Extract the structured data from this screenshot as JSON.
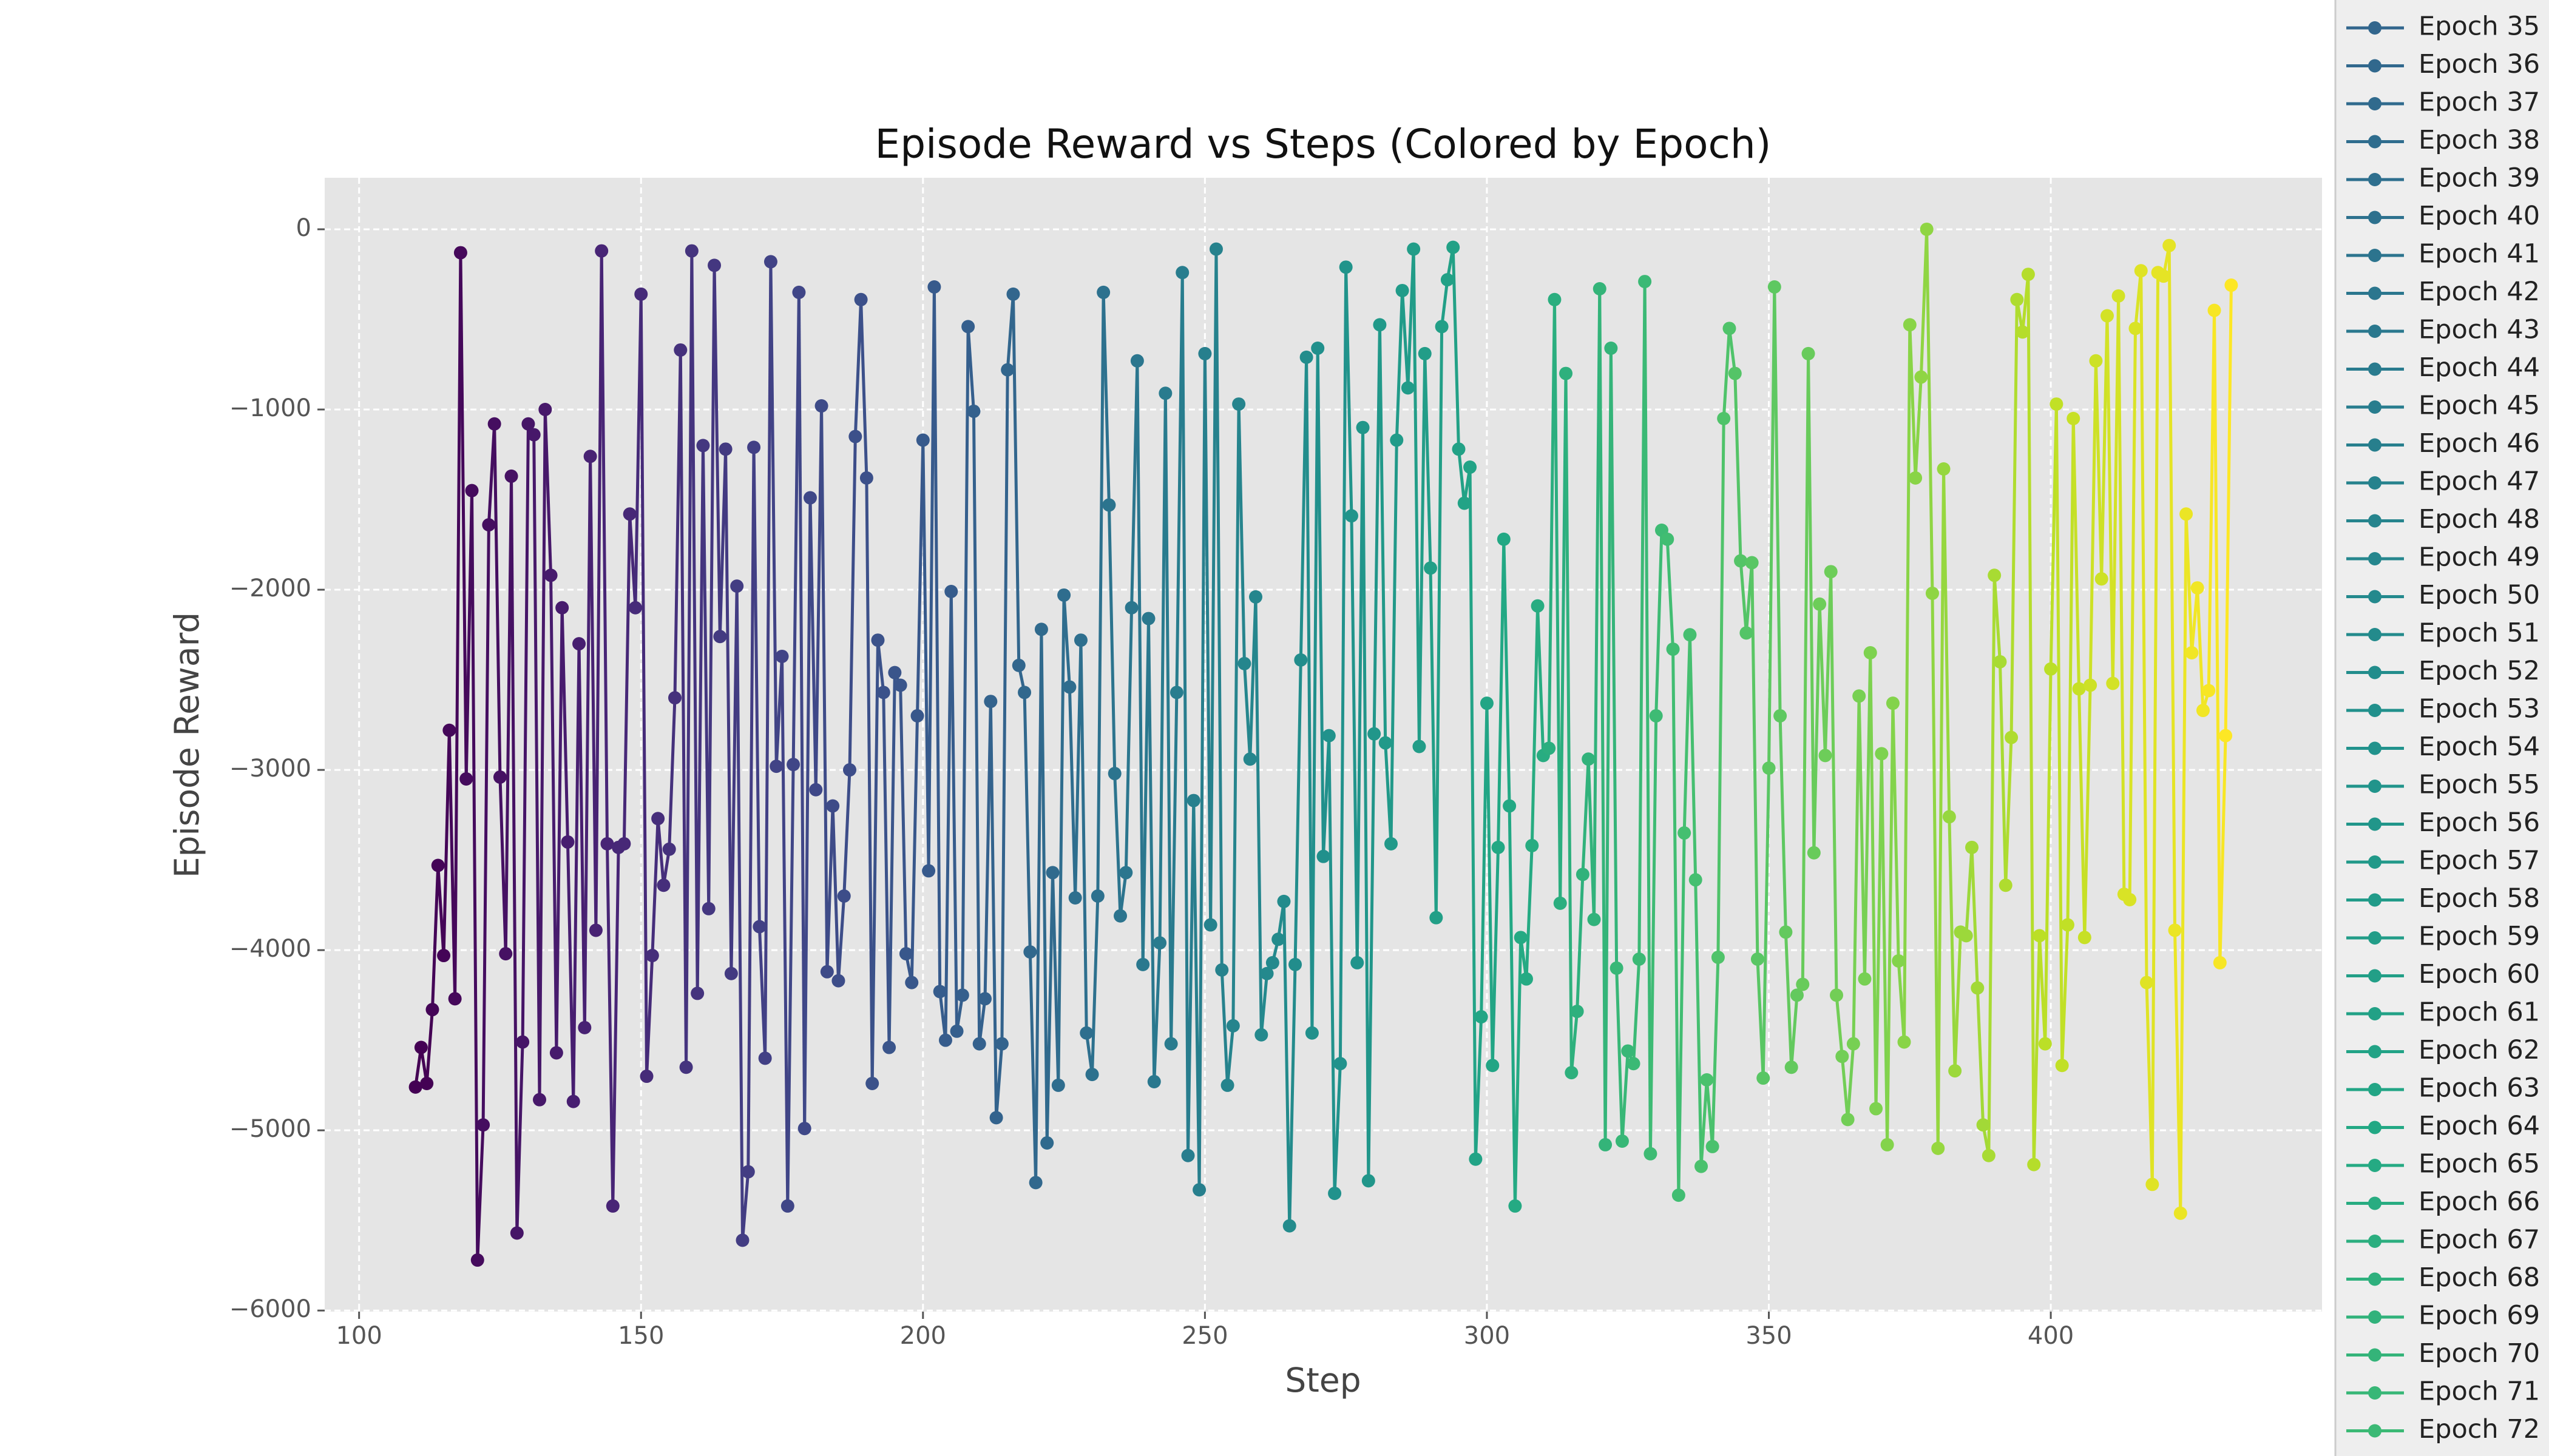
{
  "chart_data": {
    "type": "line",
    "title": "Episode Reward vs Steps (Colored by Epoch)",
    "xlabel": "Step",
    "ylabel": "Episode Reward",
    "xlim": [
      93.9,
      448.1
    ],
    "ylim": [
      -6006,
      286
    ],
    "xticks": [
      100,
      150,
      200,
      250,
      300,
      350,
      400
    ],
    "yticks": [
      {
        "value": -6000,
        "label": "−6000"
      },
      {
        "value": -5000,
        "label": "−5000"
      },
      {
        "value": -4000,
        "label": "−4000"
      },
      {
        "value": -3000,
        "label": "−3000"
      },
      {
        "value": -2000,
        "label": "−2000"
      },
      {
        "value": -1000,
        "label": "−1000"
      },
      0
    ],
    "grid": true,
    "colormap": "viridis",
    "legend": "outside right",
    "markers": true,
    "series": [
      {
        "x": [
          110,
          111,
          112
        ],
        "values": [
          -4760,
          -4540,
          -4740
        ]
      },
      {
        "x": [
          113,
          114,
          115
        ],
        "values": [
          -4330,
          -3530,
          -4030
        ]
      },
      {
        "x": [
          116,
          117,
          118
        ],
        "values": [
          -2780,
          -4270,
          -130
        ]
      },
      {
        "x": [
          119,
          120,
          121
        ],
        "values": [
          -3050,
          -1450,
          -5720
        ]
      },
      {
        "x": [
          122,
          123,
          124
        ],
        "values": [
          -4970,
          -1640,
          -1080
        ]
      },
      {
        "x": [
          125,
          126,
          127
        ],
        "values": [
          -3040,
          -4020,
          -1370
        ]
      },
      {
        "x": [
          128,
          129,
          130
        ],
        "values": [
          -5570,
          -4510,
          -1080
        ]
      },
      {
        "x": [
          131,
          132,
          133
        ],
        "values": [
          -1140,
          -4830,
          -1000
        ]
      },
      {
        "x": [
          134,
          135,
          136
        ],
        "values": [
          -1920,
          -4570,
          -2100
        ]
      },
      {
        "x": [
          137,
          138,
          139
        ],
        "values": [
          -3400,
          -4840,
          -2300
        ]
      },
      {
        "x": [
          140,
          141,
          142
        ],
        "values": [
          -4430,
          -1260,
          -3890
        ]
      },
      {
        "x": [
          143,
          144,
          145
        ],
        "values": [
          -120,
          -3410,
          -5420
        ]
      },
      {
        "x": [
          146,
          147,
          148
        ],
        "values": [
          -3430,
          -3410,
          -1580
        ]
      },
      {
        "x": [
          149,
          150,
          151
        ],
        "values": [
          -2100,
          -360,
          -4700
        ]
      },
      {
        "x": [
          152,
          153,
          154
        ],
        "values": [
          -4030,
          -3270,
          -3640
        ]
      },
      {
        "x": [
          155,
          156,
          157
        ],
        "values": [
          -3440,
          -2600,
          -670
        ]
      },
      {
        "x": [
          158,
          159,
          160
        ],
        "values": [
          -4650,
          -120,
          -4240
        ]
      },
      {
        "x": [
          161,
          162,
          163
        ],
        "values": [
          -1200,
          -3770,
          -200
        ]
      },
      {
        "x": [
          164,
          165,
          166
        ],
        "values": [
          -2260,
          -1220,
          -4130
        ]
      },
      {
        "x": [
          167,
          168,
          169
        ],
        "values": [
          -1980,
          -5610,
          -5230
        ]
      },
      {
        "x": [
          170,
          171,
          172
        ],
        "values": [
          -1210,
          -3870,
          -4600
        ]
      },
      {
        "x": [
          173,
          174,
          175
        ],
        "values": [
          -180,
          -2980,
          -2370
        ]
      },
      {
        "x": [
          176,
          177,
          178
        ],
        "values": [
          -5420,
          -2970,
          -350
        ]
      },
      {
        "x": [
          179,
          180,
          181
        ],
        "values": [
          -4990,
          -1490,
          -3110
        ]
      },
      {
        "x": [
          182,
          183,
          184
        ],
        "values": [
          -980,
          -4120,
          -3200
        ]
      },
      {
        "x": [
          185,
          186,
          187
        ],
        "values": [
          -4170,
          -3700,
          -3000
        ]
      },
      {
        "x": [
          188,
          189,
          190
        ],
        "values": [
          -1150,
          -390,
          -1380
        ]
      },
      {
        "x": [
          191,
          192,
          193
        ],
        "values": [
          -4740,
          -2280,
          -2570
        ]
      },
      {
        "x": [
          194,
          195,
          196
        ],
        "values": [
          -4540,
          -2460,
          -2530
        ]
      },
      {
        "x": [
          197,
          198,
          199
        ],
        "values": [
          -4020,
          -4180,
          -2700
        ]
      },
      {
        "x": [
          200,
          201,
          202
        ],
        "values": [
          -1170,
          -3560,
          -320
        ]
      },
      {
        "x": [
          203,
          204,
          205
        ],
        "values": [
          -4230,
          -4500,
          -2010
        ]
      },
      {
        "x": [
          206,
          207,
          208
        ],
        "values": [
          -4450,
          -4250,
          -540
        ]
      },
      {
        "x": [
          209,
          210,
          211
        ],
        "values": [
          -1010,
          -4520,
          -4270
        ]
      },
      {
        "x": [
          212,
          213,
          214
        ],
        "values": [
          -2620,
          -4930,
          -4520
        ]
      },
      {
        "name": "Epoch 35",
        "x": [
          215,
          216,
          217
        ],
        "values": [
          -780,
          -360,
          -2420
        ]
      },
      {
        "name": "Epoch 36",
        "x": [
          218,
          219,
          220
        ],
        "values": [
          -2570,
          -4010,
          -5290
        ]
      },
      {
        "name": "Epoch 37",
        "x": [
          221,
          222,
          223
        ],
        "values": [
          -2220,
          -5070,
          -3570
        ]
      },
      {
        "name": "Epoch 38",
        "x": [
          224,
          225,
          226
        ],
        "values": [
          -4750,
          -2030,
          -2540
        ]
      },
      {
        "name": "Epoch 39",
        "x": [
          227,
          228,
          229
        ],
        "values": [
          -3710,
          -2280,
          -4460
        ]
      },
      {
        "name": "Epoch 40",
        "x": [
          230,
          231,
          232
        ],
        "values": [
          -4690,
          -3700,
          -350
        ]
      },
      {
        "name": "Epoch 41",
        "x": [
          233,
          234,
          235
        ],
        "values": [
          -1530,
          -3020,
          -3810
        ]
      },
      {
        "name": "Epoch 42",
        "x": [
          236,
          237,
          238
        ],
        "values": [
          -3570,
          -2100,
          -730
        ]
      },
      {
        "name": "Epoch 43",
        "x": [
          239,
          240,
          241
        ],
        "values": [
          -4080,
          -2160,
          -4730
        ]
      },
      {
        "name": "Epoch 44",
        "x": [
          242,
          243,
          244
        ],
        "values": [
          -3960,
          -910,
          -4520
        ]
      },
      {
        "name": "Epoch 45",
        "x": [
          245,
          246,
          247
        ],
        "values": [
          -2570,
          -240,
          -5140
        ]
      },
      {
        "name": "Epoch 46",
        "x": [
          248,
          249,
          250
        ],
        "values": [
          -3170,
          -5330,
          -690
        ]
      },
      {
        "name": "Epoch 47",
        "x": [
          251,
          252,
          253
        ],
        "values": [
          -3860,
          -110,
          -4110
        ]
      },
      {
        "name": "Epoch 48",
        "x": [
          254,
          255,
          256
        ],
        "values": [
          -4750,
          -4420,
          -970
        ]
      },
      {
        "name": "Epoch 49",
        "x": [
          257,
          258,
          259
        ],
        "values": [
          -2410,
          -2940,
          -2040
        ]
      },
      {
        "name": "Epoch 50",
        "x": [
          260,
          261,
          262
        ],
        "values": [
          -4470,
          -4130,
          -4070
        ]
      },
      {
        "name": "Epoch 51",
        "x": [
          263,
          264,
          265
        ],
        "values": [
          -3940,
          -3730,
          -5530
        ]
      },
      {
        "name": "Epoch 52",
        "x": [
          266,
          267,
          268
        ],
        "values": [
          -4080,
          -2390,
          -710
        ]
      },
      {
        "name": "Epoch 53",
        "x": [
          269,
          270,
          271
        ],
        "values": [
          -4460,
          -660,
          -3480
        ]
      },
      {
        "name": "Epoch 54",
        "x": [
          272,
          273,
          274
        ],
        "values": [
          -2810,
          -5350,
          -4630
        ]
      },
      {
        "name": "Epoch 55",
        "x": [
          275,
          276,
          277
        ],
        "values": [
          -210,
          -1590,
          -4070
        ]
      },
      {
        "name": "Epoch 56",
        "x": [
          278,
          279,
          280
        ],
        "values": [
          -1100,
          -5280,
          -2800
        ]
      },
      {
        "name": "Epoch 57",
        "x": [
          281,
          282,
          283
        ],
        "values": [
          -530,
          -2850,
          -3410
        ]
      },
      {
        "name": "Epoch 58",
        "x": [
          284,
          285,
          286
        ],
        "values": [
          -1170,
          -340,
          -880
        ]
      },
      {
        "name": "Epoch 59",
        "x": [
          287,
          288,
          289
        ],
        "values": [
          -110,
          -2870,
          -690
        ]
      },
      {
        "name": "Epoch 60",
        "x": [
          290,
          291,
          292
        ],
        "values": [
          -1880,
          -3820,
          -540
        ]
      },
      {
        "name": "Epoch 61",
        "x": [
          293,
          294,
          295
        ],
        "values": [
          -280,
          -100,
          -1220
        ]
      },
      {
        "name": "Epoch 62",
        "x": [
          296,
          297,
          298
        ],
        "values": [
          -1520,
          -1320,
          -5160
        ]
      },
      {
        "name": "Epoch 63",
        "x": [
          299,
          300,
          301
        ],
        "values": [
          -4370,
          -2630,
          -4640
        ]
      },
      {
        "name": "Epoch 64",
        "x": [
          302,
          303,
          304
        ],
        "values": [
          -3430,
          -1720,
          -3200
        ]
      },
      {
        "name": "Epoch 65",
        "x": [
          305,
          306,
          307
        ],
        "values": [
          -5420,
          -3930,
          -4160
        ]
      },
      {
        "name": "Epoch 66",
        "x": [
          308,
          309,
          310
        ],
        "values": [
          -3420,
          -2090,
          -2920
        ]
      },
      {
        "name": "Epoch 67",
        "x": [
          311,
          312,
          313
        ],
        "values": [
          -2880,
          -390,
          -3740
        ]
      },
      {
        "name": "Epoch 68",
        "x": [
          314,
          315,
          316
        ],
        "values": [
          -800,
          -4680,
          -4340
        ]
      },
      {
        "name": "Epoch 69",
        "x": [
          317,
          318,
          319
        ],
        "values": [
          -3580,
          -2940,
          -3830
        ]
      },
      {
        "name": "Epoch 70",
        "x": [
          320,
          321,
          322
        ],
        "values": [
          -330,
          -5080,
          -660
        ]
      },
      {
        "name": "Epoch 71",
        "x": [
          323,
          324,
          325
        ],
        "values": [
          -4100,
          -5060,
          -4560
        ]
      },
      {
        "name": "Epoch 72",
        "x": [
          326,
          327,
          328
        ],
        "values": [
          -4630,
          -4050,
          -290
        ]
      },
      {
        "x": [
          329,
          330,
          331
        ],
        "values": [
          -5130,
          -2700,
          -1670
        ]
      },
      {
        "x": [
          332,
          333,
          334
        ],
        "values": [
          -1720,
          -2330,
          -5360
        ]
      },
      {
        "x": [
          335,
          336,
          337
        ],
        "values": [
          -3350,
          -2250,
          -3610
        ]
      },
      {
        "x": [
          338,
          339,
          340
        ],
        "values": [
          -5200,
          -4720,
          -5090
        ]
      },
      {
        "x": [
          341,
          342,
          343
        ],
        "values": [
          -4040,
          -1050,
          -550
        ]
      },
      {
        "x": [
          344,
          345,
          346
        ],
        "values": [
          -800,
          -1840,
          -2240
        ]
      },
      {
        "x": [
          347,
          348,
          349
        ],
        "values": [
          -1850,
          -4050,
          -4710
        ]
      },
      {
        "x": [
          350,
          351,
          352
        ],
        "values": [
          -2990,
          -320,
          -2700
        ]
      },
      {
        "x": [
          353,
          354,
          355
        ],
        "values": [
          -3900,
          -4650,
          -4250
        ]
      },
      {
        "x": [
          356,
          357,
          358
        ],
        "values": [
          -4190,
          -690,
          -3460
        ]
      },
      {
        "x": [
          359,
          360,
          361
        ],
        "values": [
          -2080,
          -2920,
          -1900
        ]
      },
      {
        "x": [
          362,
          363,
          364
        ],
        "values": [
          -4250,
          -4590,
          -4940
        ]
      },
      {
        "x": [
          365,
          366,
          367
        ],
        "values": [
          -4520,
          -2590,
          -4160
        ]
      },
      {
        "x": [
          368,
          369,
          370
        ],
        "values": [
          -2350,
          -4880,
          -2910
        ]
      },
      {
        "x": [
          371,
          372,
          373
        ],
        "values": [
          -5080,
          -2630,
          -4060
        ]
      },
      {
        "x": [
          374,
          375,
          376
        ],
        "values": [
          -4510,
          -530,
          -1380
        ]
      },
      {
        "x": [
          377,
          378,
          379
        ],
        "values": [
          -820,
          0,
          -2020
        ]
      },
      {
        "x": [
          380,
          381,
          382
        ],
        "values": [
          -5100,
          -1330,
          -3260
        ]
      },
      {
        "x": [
          383,
          384,
          385
        ],
        "values": [
          -4670,
          -3900,
          -3920
        ]
      },
      {
        "x": [
          386,
          387,
          388
        ],
        "values": [
          -3430,
          -4210,
          -4970
        ]
      },
      {
        "x": [
          389,
          390,
          391
        ],
        "values": [
          -5140,
          -1920,
          -2400
        ]
      },
      {
        "x": [
          392,
          393,
          394
        ],
        "values": [
          -3640,
          -2820,
          -390
        ]
      },
      {
        "x": [
          395,
          396,
          397
        ],
        "values": [
          -570,
          -250,
          -5190
        ]
      },
      {
        "x": [
          398,
          399,
          400
        ],
        "values": [
          -3920,
          -4520,
          -2440
        ]
      },
      {
        "x": [
          401,
          402,
          403
        ],
        "values": [
          -970,
          -4640,
          -3860
        ]
      },
      {
        "x": [
          404,
          405,
          406
        ],
        "values": [
          -1050,
          -2550,
          -3930
        ]
      },
      {
        "x": [
          407,
          408,
          409
        ],
        "values": [
          -2530,
          -730,
          -1940
        ]
      },
      {
        "x": [
          410,
          411,
          412
        ],
        "values": [
          -480,
          -2520,
          -370
        ]
      },
      {
        "x": [
          413,
          414,
          415
        ],
        "values": [
          -3690,
          -3720,
          -550
        ]
      },
      {
        "x": [
          416,
          417,
          418
        ],
        "values": [
          -230,
          -4180,
          -5300
        ]
      },
      {
        "x": [
          419,
          420,
          421
        ],
        "values": [
          -240,
          -260,
          -90
        ]
      },
      {
        "x": [
          422,
          423,
          424
        ],
        "values": [
          -3890,
          -5460,
          -1580
        ]
      },
      {
        "x": [
          425,
          426,
          427
        ],
        "values": [
          -2350,
          -1990,
          -2670
        ]
      },
      {
        "x": [
          428,
          429,
          430
        ],
        "values": [
          -2560,
          -450,
          -4070
        ]
      },
      {
        "x": [
          431,
          432
        ],
        "values": [
          -2810,
          -310
        ]
      }
    ]
  }
}
